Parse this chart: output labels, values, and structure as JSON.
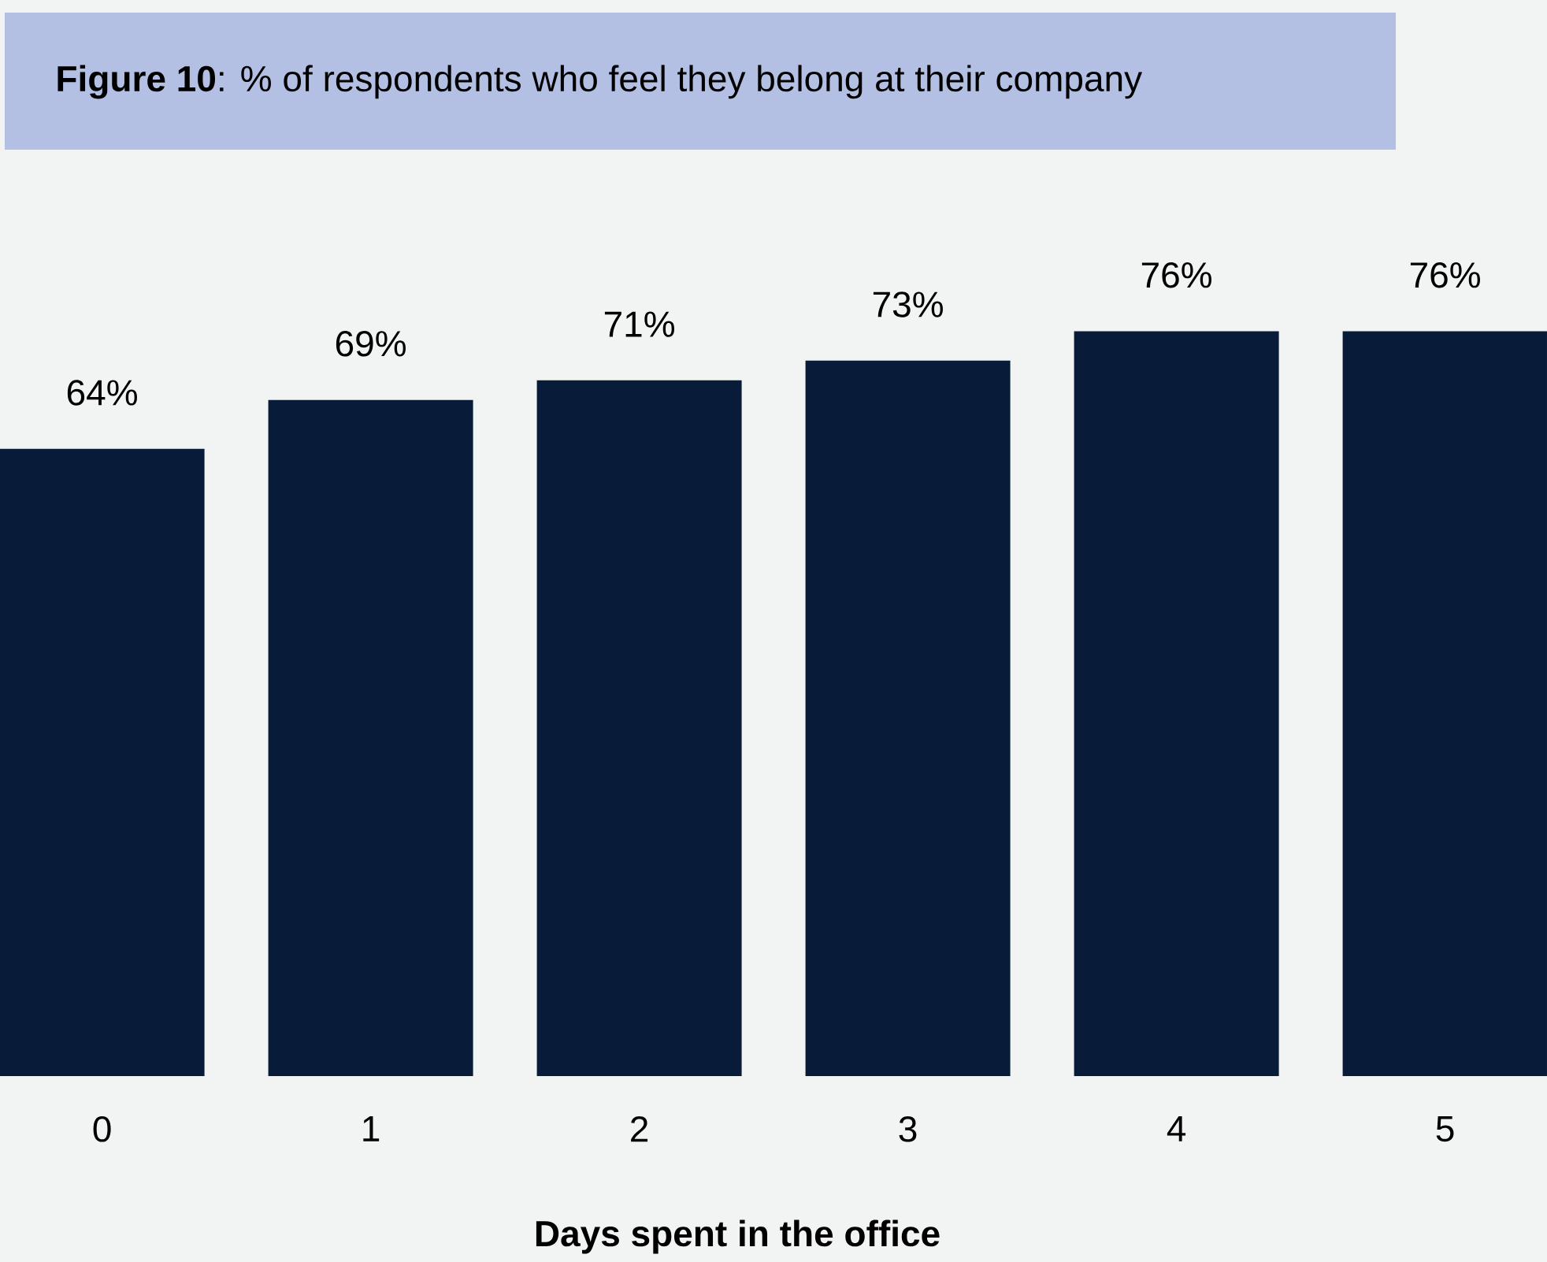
{
  "chart_data": {
    "type": "bar",
    "title": "**Figure 10**: % of respondents who feel they belong at their company",
    "xlabel": "Days spent in the office",
    "categories": [
      "0",
      "1",
      "2",
      "3",
      "4",
      "5"
    ],
    "values": [
      64,
      69,
      71,
      73,
      76,
      76
    ],
    "value_labels": [
      "64%",
      "69%",
      "71%",
      "73%",
      "76%",
      "76%"
    ],
    "color": "#081c3a"
  }
}
